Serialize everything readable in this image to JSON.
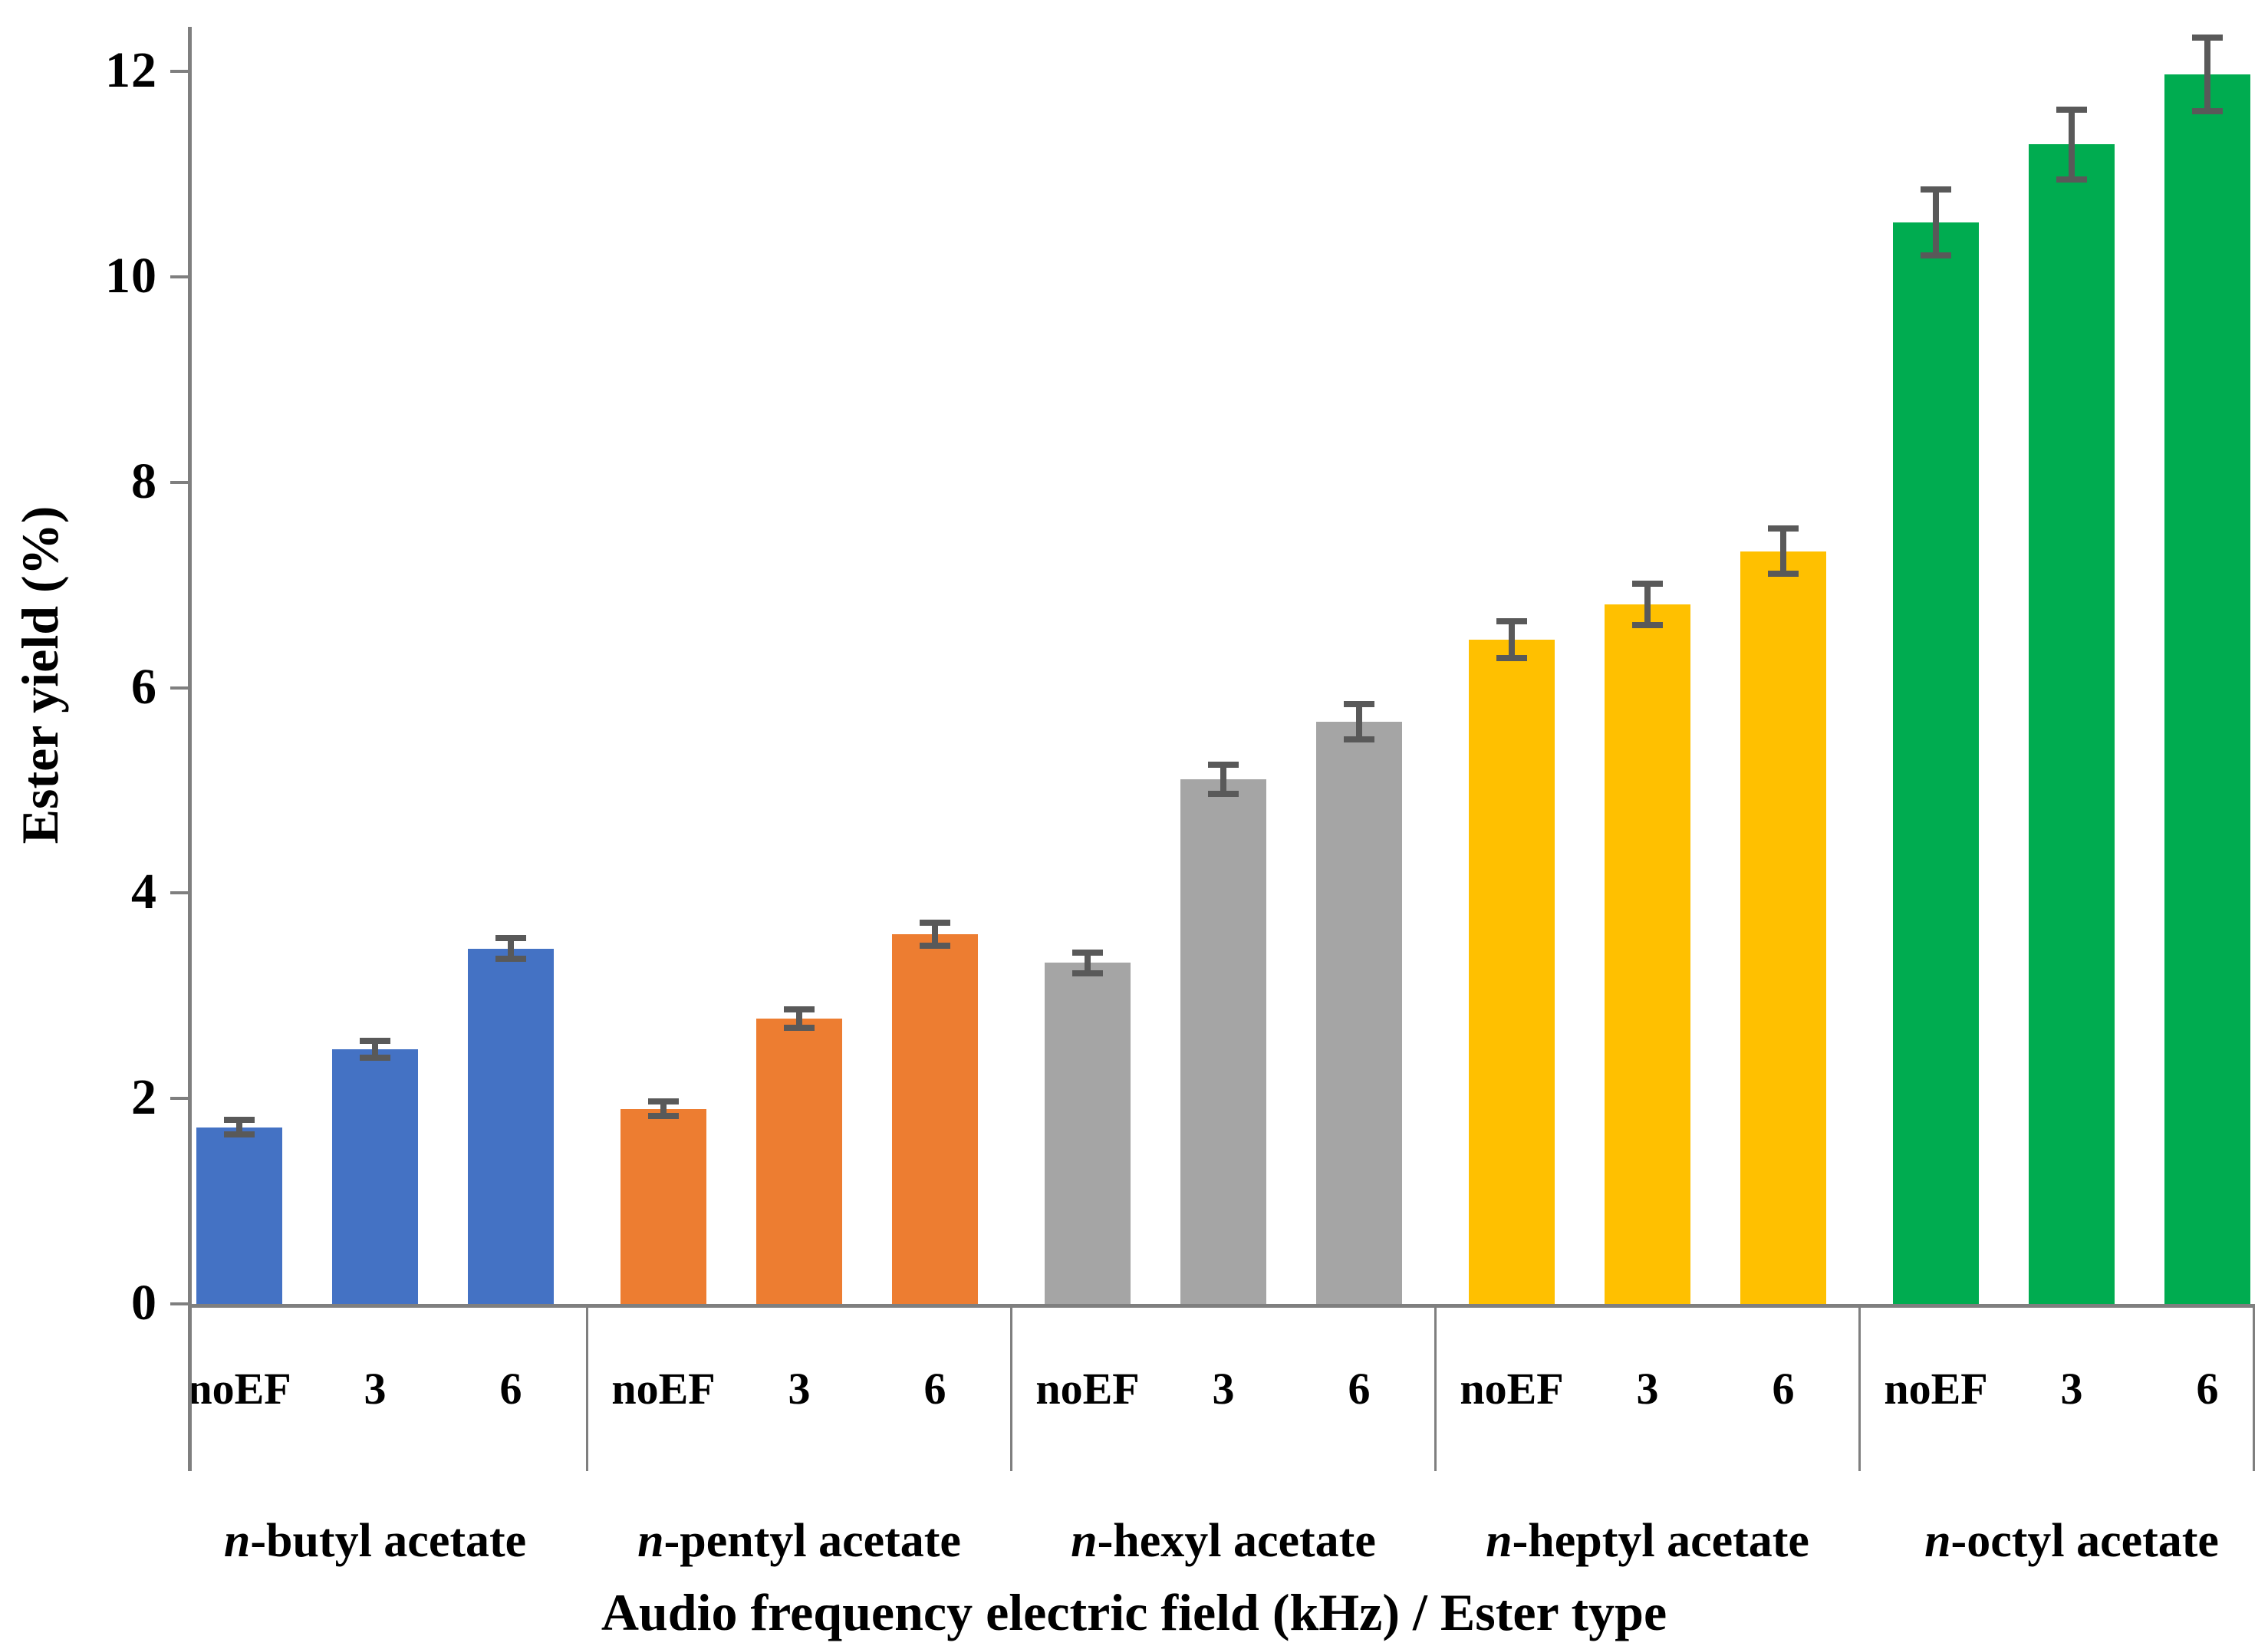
{
  "chart_data": {
    "type": "bar",
    "title": "",
    "xlabel": "Audio frequency electric field (kHz) / Ester type",
    "ylabel": "Ester yield (%)",
    "ylim": [
      0,
      12
    ],
    "yticks": [
      0,
      2,
      4,
      6,
      8,
      10,
      12
    ],
    "grid": false,
    "legend": "none",
    "bar_labels": [
      "noEF",
      "3",
      "6"
    ],
    "axis_color": "#7f7f7f",
    "error_bar_color": "#595959",
    "groups": [
      {
        "name_italic": "n",
        "name_rest": "-butyl acetate",
        "color": "#4472C4",
        "values": [
          1.72,
          2.48,
          3.46
        ],
        "errors": [
          0.07,
          0.08,
          0.1
        ]
      },
      {
        "name_italic": "n",
        "name_rest": "-pentyl acetate",
        "color": "#ED7D31",
        "values": [
          1.9,
          2.78,
          3.6
        ],
        "errors": [
          0.07,
          0.09,
          0.11
        ]
      },
      {
        "name_italic": "n",
        "name_rest": "-hexyl acetate",
        "color": "#A5A5A5",
        "values": [
          3.32,
          5.11,
          5.67
        ],
        "errors": [
          0.1,
          0.14,
          0.17
        ]
      },
      {
        "name_italic": "n",
        "name_rest": "-heptyl acetate",
        "color": "#FFC000",
        "values": [
          6.47,
          6.81,
          7.33
        ],
        "errors": [
          0.18,
          0.2,
          0.22
        ]
      },
      {
        "name_italic": "n",
        "name_rest": "-octyl acetate",
        "color": "#00AC50",
        "values": [
          10.53,
          11.29,
          11.97
        ],
        "errors": [
          0.32,
          0.34,
          0.36
        ]
      }
    ]
  }
}
